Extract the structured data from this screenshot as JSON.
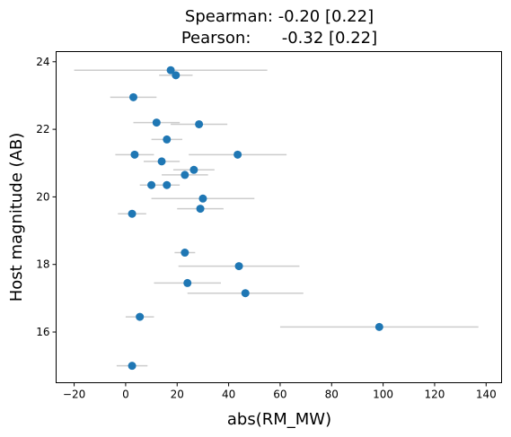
{
  "chart_data": {
    "type": "scatter",
    "title_lines": [
      "Spearman: -0.20 [0.22]",
      "Pearson:      -0.32 [0.22]"
    ],
    "xlabel": "abs(RM_MW)",
    "ylabel": "Host magnitude (AB)",
    "xlim": [
      -27,
      146
    ],
    "ylim": [
      14.5,
      24.3
    ],
    "xticks": [
      -20,
      0,
      20,
      40,
      60,
      80,
      100,
      120,
      140
    ],
    "xtick_labels": [
      "−20",
      "0",
      "20",
      "40",
      "60",
      "80",
      "100",
      "120",
      "140"
    ],
    "yticks": [
      16,
      18,
      20,
      22,
      24
    ],
    "ytick_labels": [
      "16",
      "18",
      "20",
      "22",
      "24"
    ],
    "grid": false,
    "marker_color": "#1f77b4",
    "errorbar_color": "#cccccc",
    "points": [
      {
        "x": 17.5,
        "y": 23.75,
        "xerr": 37.5
      },
      {
        "x": 19.5,
        "y": 23.6,
        "xerr": 6.5
      },
      {
        "x": 3.0,
        "y": 22.95,
        "xerr": 9.0
      },
      {
        "x": 12.0,
        "y": 22.2,
        "xerr": 9.0
      },
      {
        "x": 28.5,
        "y": 22.15,
        "xerr": 11.0
      },
      {
        "x": 16.0,
        "y": 21.7,
        "xerr": 6.0
      },
      {
        "x": 3.5,
        "y": 21.25,
        "xerr": 7.5
      },
      {
        "x": 43.5,
        "y": 21.25,
        "xerr": 19.0
      },
      {
        "x": 14.0,
        "y": 21.05,
        "xerr": 7.0
      },
      {
        "x": 26.5,
        "y": 20.8,
        "xerr": 8.0
      },
      {
        "x": 23.0,
        "y": 20.65,
        "xerr": 9.0
      },
      {
        "x": 10.0,
        "y": 20.35,
        "xerr": 4.5
      },
      {
        "x": 16.0,
        "y": 20.35,
        "xerr": 5.0
      },
      {
        "x": 30.0,
        "y": 19.95,
        "xerr": 20.0
      },
      {
        "x": 29.0,
        "y": 19.65,
        "xerr": 9.0
      },
      {
        "x": 2.5,
        "y": 19.5,
        "xerr": 5.5
      },
      {
        "x": 23.0,
        "y": 18.35,
        "xerr": 4.0
      },
      {
        "x": 44.0,
        "y": 17.95,
        "xerr": 23.5
      },
      {
        "x": 24.0,
        "y": 17.45,
        "xerr": 13.0
      },
      {
        "x": 46.5,
        "y": 17.15,
        "xerr": 22.5
      },
      {
        "x": 5.5,
        "y": 16.45,
        "xerr": 5.5
      },
      {
        "x": 98.5,
        "y": 16.15,
        "xerr": 38.5
      },
      {
        "x": 2.5,
        "y": 15.0,
        "xerr": 6.0
      }
    ]
  }
}
